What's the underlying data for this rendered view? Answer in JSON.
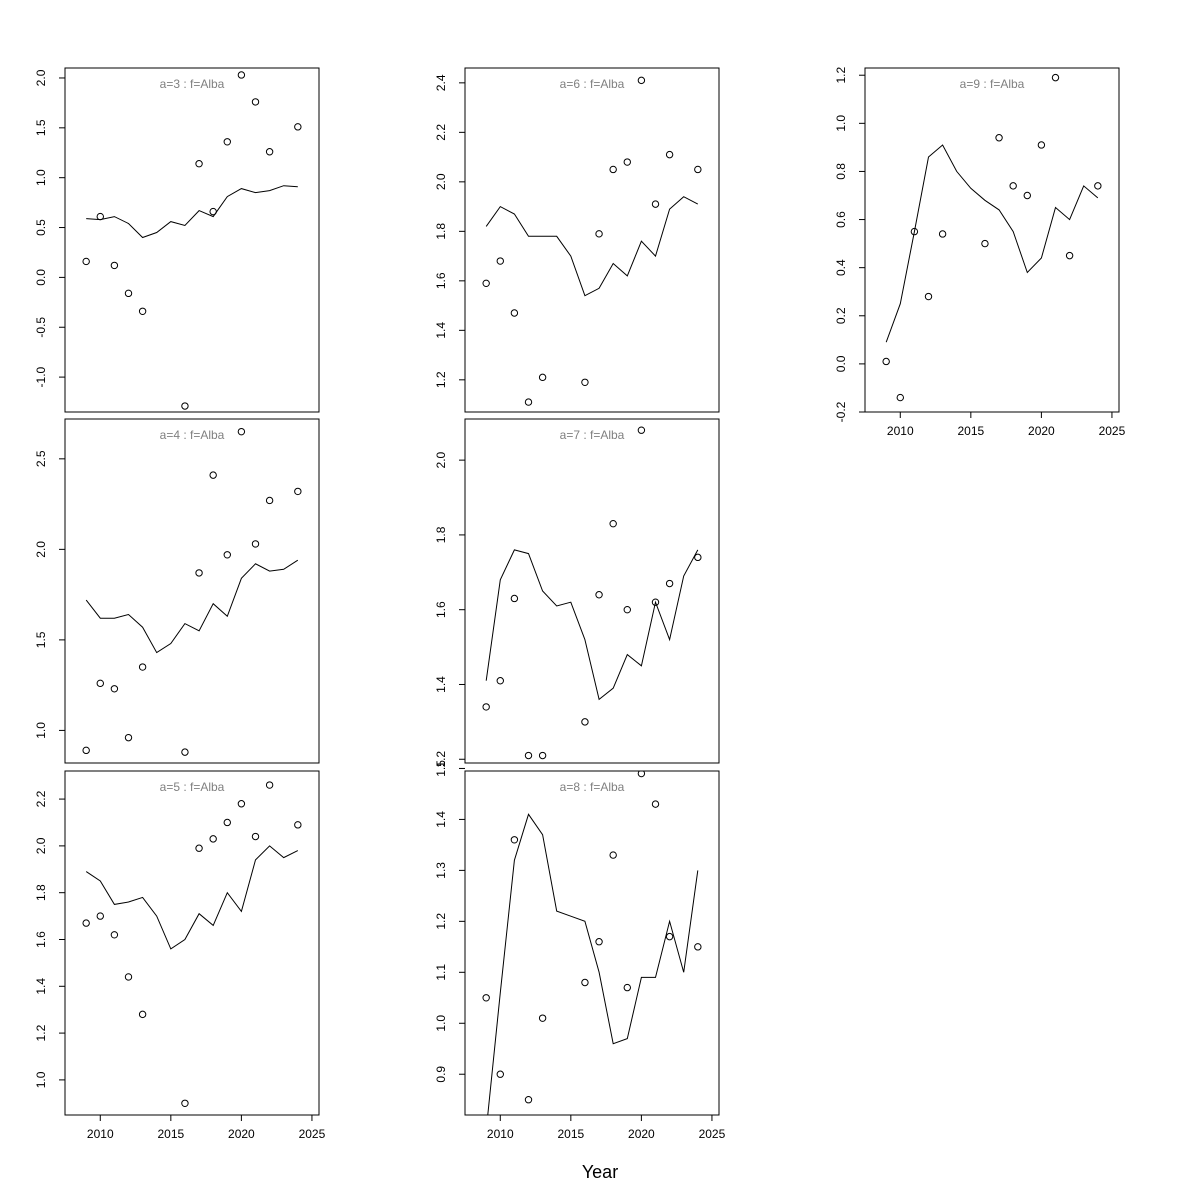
{
  "figure": {
    "xlabel": "Year",
    "x_ticks": [
      2010,
      2015,
      2020,
      2025
    ],
    "xlim": [
      2007.5,
      2025.5
    ]
  },
  "chart_data": [
    {
      "type": "scatter",
      "title": "a=3  :  f=Alba",
      "ylim": [
        -1.35,
        2.1
      ],
      "y_ticks": [
        -1.0,
        -0.5,
        0.0,
        0.5,
        1.0,
        1.5,
        2.0
      ],
      "y_tick_labels": [
        "-1.0",
        "-0.5",
        "0.0",
        "0.5",
        "1.0",
        "1.5",
        "2.0"
      ],
      "x": [
        2009,
        2010,
        2011,
        2012,
        2013,
        2014,
        2015,
        2016,
        2017,
        2018,
        2019,
        2020,
        2021,
        2022,
        2023,
        2024
      ],
      "observed": [
        0.16,
        0.61,
        0.12,
        -0.16,
        -0.34,
        null,
        null,
        -1.29,
        1.14,
        0.66,
        1.36,
        2.03,
        1.76,
        1.26,
        null,
        1.51
      ],
      "fitted": [
        0.59,
        0.58,
        0.61,
        0.54,
        0.4,
        0.45,
        0.56,
        0.52,
        0.67,
        0.61,
        0.81,
        0.89,
        0.85,
        0.87,
        0.92,
        0.91
      ]
    },
    {
      "type": "scatter",
      "title": "a=4  :  f=Alba",
      "ylim": [
        0.82,
        2.72
      ],
      "y_ticks": [
        1.0,
        1.5,
        2.0,
        2.5
      ],
      "y_tick_labels": [
        "1.0",
        "1.5",
        "2.0",
        "2.5"
      ],
      "x": [
        2009,
        2010,
        2011,
        2012,
        2013,
        2014,
        2015,
        2016,
        2017,
        2018,
        2019,
        2020,
        2021,
        2022,
        2023,
        2024
      ],
      "observed": [
        0.89,
        1.26,
        1.23,
        0.96,
        1.35,
        null,
        null,
        0.88,
        1.87,
        2.41,
        1.97,
        2.65,
        2.03,
        2.27,
        null,
        2.32
      ],
      "fitted": [
        1.72,
        1.62,
        1.62,
        1.64,
        1.57,
        1.43,
        1.48,
        1.59,
        1.55,
        1.7,
        1.63,
        1.84,
        1.92,
        1.88,
        1.89,
        1.94
      ]
    },
    {
      "type": "scatter",
      "title": "a=5  :  f=Alba",
      "ylim": [
        0.85,
        2.32
      ],
      "y_ticks": [
        1.0,
        1.2,
        1.4,
        1.6,
        1.8,
        2.0,
        2.2
      ],
      "y_tick_labels": [
        "1.0",
        "1.2",
        "1.4",
        "1.6",
        "1.8",
        "2.0",
        "2.2"
      ],
      "x": [
        2009,
        2010,
        2011,
        2012,
        2013,
        2014,
        2015,
        2016,
        2017,
        2018,
        2019,
        2020,
        2021,
        2022,
        2023,
        2024
      ],
      "observed": [
        1.67,
        1.7,
        1.62,
        1.44,
        1.28,
        null,
        null,
        0.9,
        1.99,
        2.03,
        2.1,
        2.18,
        2.04,
        2.26,
        null,
        2.09
      ],
      "fitted": [
        1.89,
        1.85,
        1.75,
        1.76,
        1.78,
        1.7,
        1.56,
        1.6,
        1.71,
        1.66,
        1.8,
        1.72,
        1.94,
        2.0,
        1.95,
        1.98
      ]
    },
    {
      "type": "scatter",
      "title": "a=6  :  f=Alba",
      "ylim": [
        1.07,
        2.46
      ],
      "y_ticks": [
        1.2,
        1.4,
        1.6,
        1.8,
        2.0,
        2.2,
        2.4
      ],
      "y_tick_labels": [
        "1.2",
        "1.4",
        "1.6",
        "1.8",
        "2.0",
        "2.2",
        "2.4"
      ],
      "x": [
        2009,
        2010,
        2011,
        2012,
        2013,
        2014,
        2015,
        2016,
        2017,
        2018,
        2019,
        2020,
        2021,
        2022,
        2023,
        2024
      ],
      "observed": [
        1.59,
        1.68,
        1.47,
        1.11,
        1.21,
        null,
        null,
        1.19,
        1.79,
        2.05,
        2.08,
        2.41,
        1.91,
        2.11,
        null,
        2.05
      ],
      "fitted": [
        1.82,
        1.9,
        1.87,
        1.78,
        1.78,
        1.78,
        1.7,
        1.54,
        1.57,
        1.67,
        1.62,
        1.76,
        1.7,
        1.89,
        1.94,
        1.91
      ]
    },
    {
      "type": "scatter",
      "title": "a=7  :  f=Alba",
      "ylim": [
        1.19,
        2.11
      ],
      "y_ticks": [
        1.2,
        1.4,
        1.6,
        1.8,
        2.0
      ],
      "y_tick_labels": [
        "1.2",
        "1.4",
        "1.6",
        "1.8",
        "2.0"
      ],
      "x": [
        2009,
        2010,
        2011,
        2012,
        2013,
        2014,
        2015,
        2016,
        2017,
        2018,
        2019,
        2020,
        2021,
        2022,
        2023,
        2024
      ],
      "observed": [
        1.34,
        1.41,
        1.63,
        1.21,
        1.21,
        null,
        null,
        1.3,
        1.64,
        1.83,
        1.6,
        2.08,
        1.62,
        1.67,
        null,
        1.74
      ],
      "fitted": [
        1.41,
        1.68,
        1.76,
        1.75,
        1.65,
        1.61,
        1.62,
        1.52,
        1.36,
        1.39,
        1.48,
        1.45,
        1.62,
        1.52,
        1.69,
        1.76
      ]
    },
    {
      "type": "scatter",
      "title": "a=8  :  f=Alba",
      "ylim": [
        0.82,
        1.495
      ],
      "y_ticks": [
        0.9,
        1.0,
        1.1,
        1.2,
        1.3,
        1.4,
        1.5
      ],
      "y_tick_labels": [
        "0.9",
        "1.0",
        "1.1",
        "1.2",
        "1.3",
        "1.4",
        "1.5"
      ],
      "x": [
        2009,
        2010,
        2011,
        2012,
        2013,
        2014,
        2015,
        2016,
        2017,
        2018,
        2019,
        2020,
        2021,
        2022,
        2023,
        2024
      ],
      "observed": [
        1.05,
        0.9,
        1.36,
        0.85,
        1.01,
        null,
        null,
        1.08,
        1.16,
        1.33,
        1.07,
        1.49,
        1.43,
        1.17,
        null,
        1.15
      ],
      "fitted": [
        0.79,
        1.06,
        1.32,
        1.41,
        1.37,
        1.22,
        1.21,
        1.2,
        1.1,
        0.96,
        0.97,
        1.09,
        1.09,
        1.2,
        1.1,
        1.3
      ]
    },
    {
      "type": "scatter",
      "title": "a=9  :  f=Alba",
      "ylim": [
        -0.2,
        1.23
      ],
      "y_ticks": [
        -0.2,
        0.0,
        0.2,
        0.4,
        0.6,
        0.8,
        1.0,
        1.2
      ],
      "y_tick_labels": [
        "-0.2",
        "0.0",
        "0.2",
        "0.4",
        "0.6",
        "0.8",
        "1.0",
        "1.2"
      ],
      "x": [
        2009,
        2010,
        2011,
        2012,
        2013,
        2014,
        2015,
        2016,
        2017,
        2018,
        2019,
        2020,
        2021,
        2022,
        2023,
        2024
      ],
      "observed": [
        0.01,
        -0.14,
        0.55,
        0.28,
        0.54,
        null,
        null,
        0.5,
        0.94,
        0.74,
        0.7,
        0.91,
        1.19,
        0.45,
        null,
        0.74
      ],
      "fitted": [
        0.09,
        0.25,
        0.55,
        0.86,
        0.91,
        0.8,
        0.73,
        0.68,
        0.64,
        0.55,
        0.38,
        0.44,
        0.65,
        0.6,
        0.74,
        0.69
      ]
    }
  ]
}
